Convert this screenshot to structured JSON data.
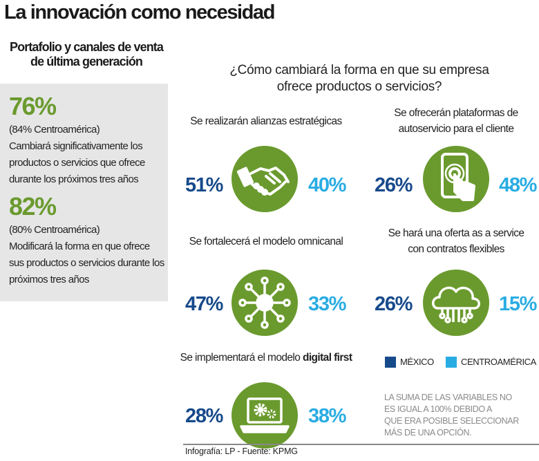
{
  "title": "La innovación como necesidad",
  "subtitle": [
    "Portafolio y canales de venta",
    "de última generación"
  ],
  "summary": [
    {
      "value": "76%",
      "note": "(84% Centroamérica)",
      "text": "Cambiará significativamente los productos o servicios que ofrece durante los próximos tres años"
    },
    {
      "value": "82%",
      "note": "(80% Centroamérica)",
      "text": "Modificará la forma en que ofrece sus productos o servicios durante los próximos tres años"
    }
  ],
  "question": [
    "¿Cómo cambiará la forma en que su empresa",
    "ofrece productos o servicios?"
  ],
  "options": [
    {
      "label": [
        "Se realizarán alianzas estratégicas"
      ],
      "icon": "handshake-icon",
      "mexico": "51%",
      "centroamerica": "40%"
    },
    {
      "label": [
        "Se ofrecerán plataformas de",
        "autoservicio para el cliente"
      ],
      "icon": "smartphone-touch-icon",
      "mexico": "26%",
      "centroamerica": "48%"
    },
    {
      "label": [
        "Se fortalecerá el modelo omnicanal"
      ],
      "icon": "network-hub-icon",
      "mexico": "47%",
      "centroamerica": "33%"
    },
    {
      "label": [
        "Se hará una oferta as a service",
        "con contratos flexibles"
      ],
      "icon": "cloud-circuit-icon",
      "mexico": "26%",
      "centroamerica": "15%"
    },
    {
      "label_prefix": "Se implementará el modelo ",
      "label_bold": "digital first",
      "icon": "laptop-gears-icon",
      "mexico": "28%",
      "centroamerica": "38%"
    }
  ],
  "legend": [
    {
      "label": "MÉXICO",
      "color": "#174a8b"
    },
    {
      "label": "CENTROAMÉRICA",
      "color": "#29ace3"
    }
  ],
  "note": [
    "LA SUMA DE LAS VARIABLES NO",
    "ES IGUAL A 100% DEBIDO A",
    "QUE ERA POSIBLE SELECCIONAR",
    "MÁS DE UNA OPCIÓN."
  ],
  "credit": "Infografía: LP - Fuente: KPMG",
  "colors": {
    "accent": "#6a9a2e",
    "mexico": "#174a8b",
    "centroamerica": "#29ace3",
    "panel": "#e6e6e6"
  },
  "chart_data": {
    "type": "table",
    "title": "¿Cómo cambiará la forma en que su empresa ofrece productos o servicios?",
    "categories": [
      "Se realizarán alianzas estratégicas",
      "Se ofrecerán plataformas de autoservicio para el cliente",
      "Se fortalecerá el modelo omnicanal",
      "Se hará una oferta as a service con contratos flexibles",
      "Se implementará el modelo digital first"
    ],
    "series": [
      {
        "name": "MÉXICO",
        "values": [
          51,
          26,
          47,
          26,
          28
        ]
      },
      {
        "name": "CENTROAMÉRICA",
        "values": [
          40,
          48,
          33,
          15,
          38
        ]
      }
    ]
  }
}
